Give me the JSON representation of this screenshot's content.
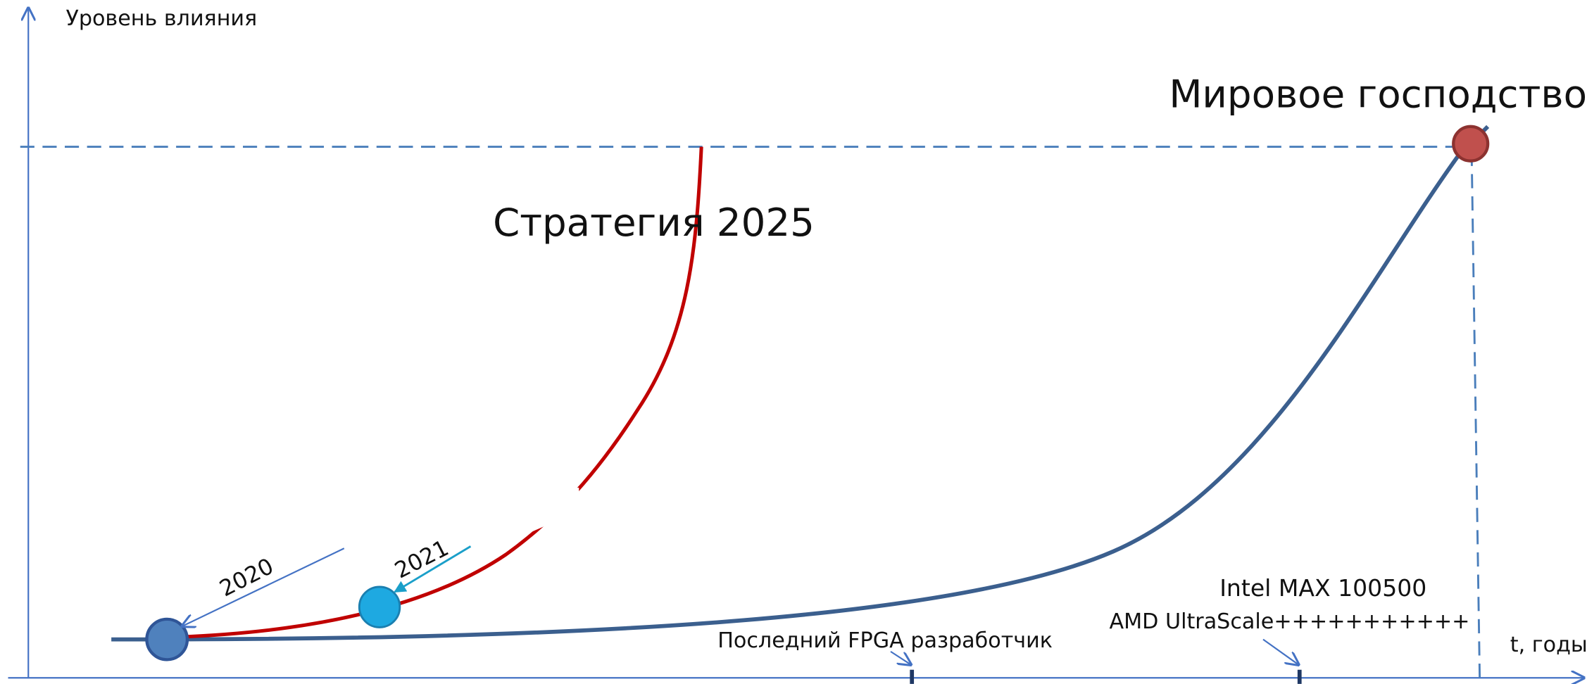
{
  "axes": {
    "y_label": "Уровень влияния",
    "x_label": "t, годы"
  },
  "curves": [
    {
      "label": "Стратегия 2025"
    },
    {
      "label": "Мировое господство"
    }
  ],
  "points": [
    {
      "label": "2020"
    },
    {
      "label": "2021"
    }
  ],
  "milestones": [
    {
      "label": "Последний FPGA разработчик"
    },
    {
      "label": "Intel MAX 100500"
    },
    {
      "label": "AMD UltraScale+++++++++++"
    }
  ]
}
